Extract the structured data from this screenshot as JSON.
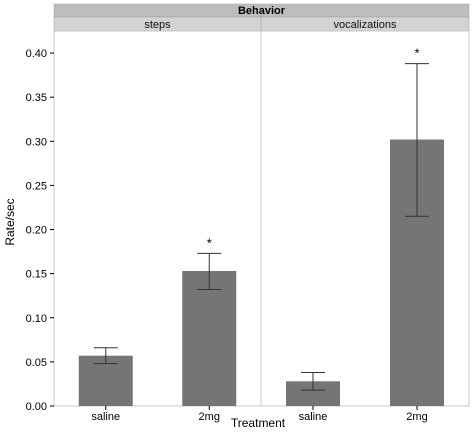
{
  "chart_data": {
    "type": "bar",
    "facet_title": "Behavior",
    "xlabel": "Treatment",
    "ylabel": "Rate/sec",
    "ylim": [
      0,
      0.425
    ],
    "yticks": [
      "0.00",
      "0.05",
      "0.10",
      "0.15",
      "0.20",
      "0.25",
      "0.30",
      "0.35",
      "0.40"
    ],
    "grid": false,
    "colors": {
      "bar": "#757575",
      "strip": "#d3d3d3",
      "strip_title": "#bdbdbd"
    },
    "panels": [
      {
        "name": "steps",
        "categories": [
          "saline",
          "2mg"
        ],
        "values": [
          0.057,
          0.153
        ],
        "error_low": [
          0.048,
          0.132
        ],
        "error_high": [
          0.066,
          0.173
        ],
        "annotations": [
          "",
          "*"
        ]
      },
      {
        "name": "vocalizations",
        "categories": [
          "saline",
          "2mg"
        ],
        "values": [
          0.028,
          0.302
        ],
        "error_low": [
          0.018,
          0.215
        ],
        "error_high": [
          0.038,
          0.388
        ],
        "annotations": [
          "",
          "*"
        ]
      }
    ]
  }
}
